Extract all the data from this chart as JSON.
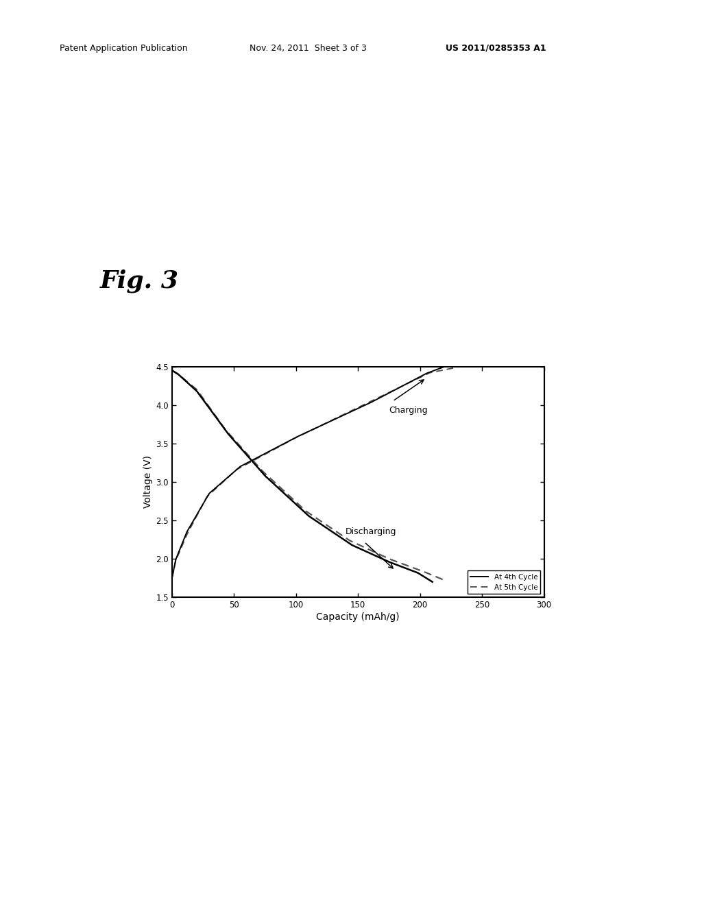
{
  "title_text": "Fig. 3",
  "header_left": "Patent Application Publication",
  "header_mid": "Nov. 24, 2011  Sheet 3 of 3",
  "header_right": "US 2011/0285353 A1",
  "xlabel": "Capacity (mAh/g)",
  "ylabel": "Voltage (V)",
  "xlim": [
    0,
    300
  ],
  "ylim": [
    1.5,
    4.5
  ],
  "xticks": [
    0,
    50,
    100,
    150,
    200,
    250,
    300
  ],
  "yticks": [
    1.5,
    2.0,
    2.5,
    3.0,
    3.5,
    4.0,
    4.5
  ],
  "legend_entries": [
    "At 4th Cycle",
    "At 5th Cycle"
  ],
  "charging_label": "Charging",
  "discharging_label": "Discharging",
  "background_color": "#ffffff",
  "line_color_4th": "#000000",
  "line_color_5th": "#555555"
}
